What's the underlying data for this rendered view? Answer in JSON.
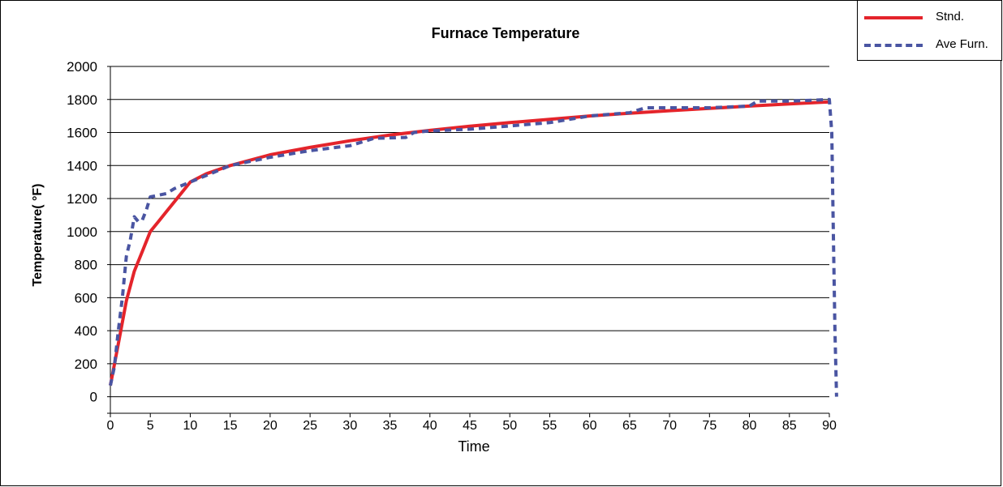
{
  "chart_data": {
    "type": "line",
    "title": "Furnace Temperature",
    "xlabel": "Time",
    "ylabel": "Temperature( °F)",
    "xlim": [
      0,
      90
    ],
    "ylim": [
      -100,
      2000
    ],
    "x_ticks": [
      "0",
      "5",
      "10",
      "15",
      "20",
      "25",
      "30",
      "35",
      "40",
      "45",
      "50",
      "55",
      "60",
      "65",
      "70",
      "75",
      "80",
      "85",
      "90"
    ],
    "y_ticks": [
      "0",
      "200",
      "400",
      "600",
      "800",
      "1000",
      "1200",
      "1400",
      "1600",
      "1800",
      "2000"
    ],
    "grid": true,
    "legend_position": "top-right",
    "series": [
      {
        "name": "Stnd.",
        "color": "#e4242b",
        "style": "solid",
        "x": [
          0,
          1,
          2,
          3,
          4,
          5,
          6,
          7,
          8,
          10,
          12,
          15,
          20,
          25,
          30,
          35,
          40,
          45,
          50,
          55,
          60,
          65,
          70,
          75,
          80,
          85,
          90
        ],
        "y": [
          68,
          320,
          580,
          760,
          880,
          1000,
          1060,
          1120,
          1180,
          1300,
          1350,
          1400,
          1465,
          1510,
          1550,
          1585,
          1613,
          1638,
          1660,
          1680,
          1700,
          1717,
          1732,
          1746,
          1760,
          1773,
          1785
        ]
      },
      {
        "name": "Ave Furn.",
        "color": "#4a55a2",
        "style": "dashed",
        "x": [
          0,
          0.5,
          1,
          1.5,
          2,
          2.5,
          3,
          3.5,
          4,
          4.5,
          5,
          6,
          7,
          8,
          10,
          15,
          20,
          25,
          30,
          33,
          37,
          38,
          40,
          45,
          50,
          55,
          60,
          65,
          67,
          70,
          75,
          80,
          81,
          85,
          90,
          90.3,
          90.5,
          90.7,
          90.9
        ],
        "y": [
          68,
          180,
          400,
          600,
          850,
          950,
          1090,
          1060,
          1070,
          1130,
          1210,
          1220,
          1230,
          1260,
          1300,
          1400,
          1450,
          1490,
          1520,
          1565,
          1570,
          1600,
          1610,
          1620,
          1640,
          1660,
          1700,
          1720,
          1750,
          1750,
          1750,
          1760,
          1790,
          1790,
          1800,
          1600,
          1000,
          400,
          0
        ]
      }
    ]
  }
}
